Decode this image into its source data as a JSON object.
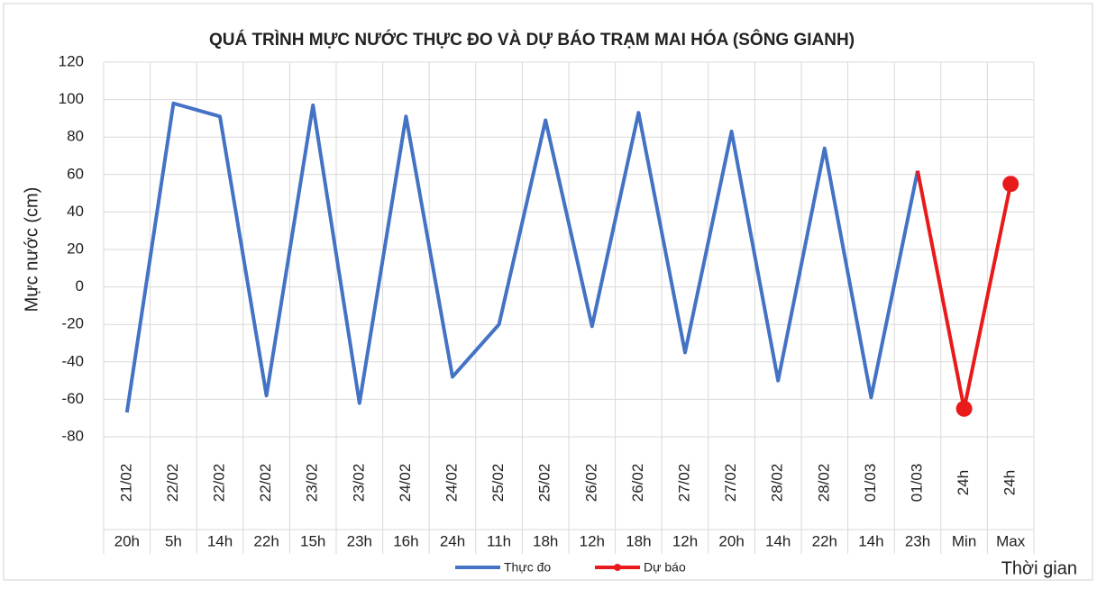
{
  "chart_data": {
    "type": "line",
    "title": "QUÁ TRÌNH MỰC NƯỚC THỰC ĐO VÀ DỰ BÁO TRẠM MAI HÓA (SÔNG GIANH)",
    "y_label": "Mực nước (cm)",
    "x_label": "Thời gian",
    "category_groups": [
      "21/02",
      "22/02",
      "22/02",
      "22/02",
      "23/02",
      "23/02",
      "24/02",
      "24/02",
      "25/02",
      "25/02",
      "26/02",
      "26/02",
      "27/02",
      "27/02",
      "28/02",
      "28/02",
      "01/03",
      "01/03",
      "24h",
      "24h"
    ],
    "categories": [
      "20h",
      "5h",
      "14h",
      "22h",
      "15h",
      "23h",
      "16h",
      "24h",
      "11h",
      "18h",
      "12h",
      "18h",
      "12h",
      "20h",
      "14h",
      "22h",
      "14h",
      "23h",
      "Min",
      "Max"
    ],
    "series": [
      {
        "name": "Thực đo",
        "color": "#4472c4",
        "markers": false,
        "values": [
          -67,
          98,
          91,
          -58,
          97,
          -62,
          91,
          -48,
          -20,
          89,
          -21,
          93,
          -35,
          83,
          -50,
          74,
          -59,
          62,
          null,
          null
        ]
      },
      {
        "name": "Dự báo",
        "color": "#e81a1a",
        "markers": true,
        "values": [
          null,
          null,
          null,
          null,
          null,
          null,
          null,
          null,
          null,
          null,
          null,
          null,
          null,
          null,
          null,
          null,
          null,
          62,
          -65,
          55
        ]
      }
    ],
    "ylim": [
      -80,
      120
    ],
    "yticks": [
      -80,
      -60,
      -40,
      -20,
      0,
      20,
      40,
      60,
      80,
      100,
      120
    ],
    "grid": true,
    "legend": "bottom"
  }
}
